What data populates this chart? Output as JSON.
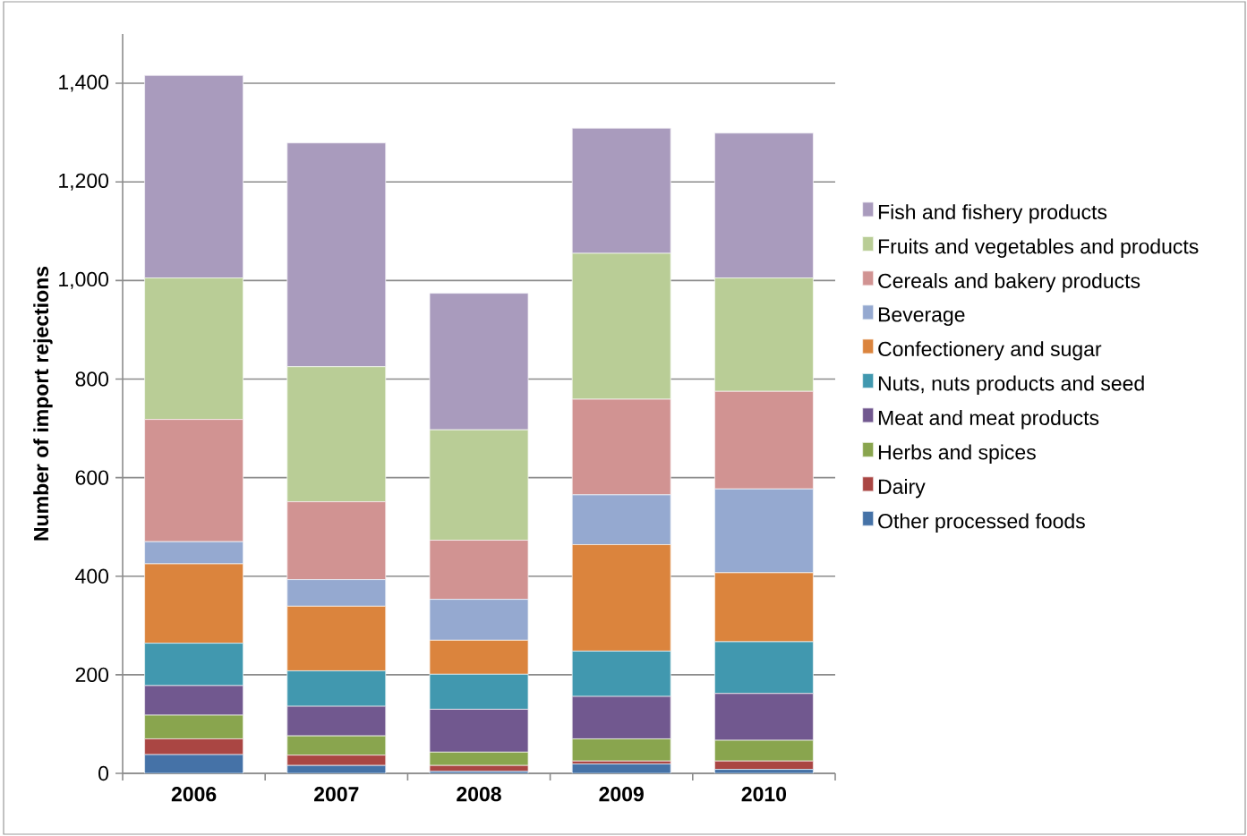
{
  "chart_data": {
    "type": "bar",
    "stacked": true,
    "ylabel": "Number of import rejections",
    "categories": [
      "2006",
      "2007",
      "2008",
      "2009",
      "2010"
    ],
    "ylim": [
      0,
      1500
    ],
    "yticks": [
      0,
      {
        "value": 200,
        "label": "200"
      },
      {
        "value": 400,
        "label": "400"
      },
      {
        "value": 600,
        "label": "600"
      },
      {
        "value": 800,
        "label": "800"
      },
      {
        "value": 1000,
        "label": "1,000"
      },
      {
        "value": 1200,
        "label": "1,200"
      },
      {
        "value": 1400,
        "label": "1,400"
      }
    ],
    "grid": "y",
    "legend": "right",
    "series": [
      {
        "name": "Other processed foods",
        "color": "#4572a7",
        "values": [
          38,
          16,
          4,
          19,
          8
        ]
      },
      {
        "name": "Dairy",
        "color": "#aa4643",
        "values": [
          32,
          21,
          12,
          6,
          17
        ]
      },
      {
        "name": "Herbs and spices",
        "color": "#89a54e",
        "values": [
          48,
          39,
          27,
          45,
          42
        ]
      },
      {
        "name": "Meat and meat products",
        "color": "#71588f",
        "values": [
          60,
          60,
          87,
          86,
          95
        ]
      },
      {
        "name": "Nuts, nuts products and seed",
        "color": "#4198af",
        "values": [
          86,
          72,
          71,
          92,
          105
        ]
      },
      {
        "name": "Confectionery and sugar",
        "color": "#db843d",
        "values": [
          161,
          131,
          69,
          216,
          140
        ]
      },
      {
        "name": "Beverage",
        "color": "#95a9d0",
        "values": [
          45,
          54,
          83,
          101,
          170
        ]
      },
      {
        "name": "Cereals and bakery products",
        "color": "#d19392",
        "values": [
          248,
          158,
          120,
          194,
          198
        ]
      },
      {
        "name": "Fruits and vegetables and products",
        "color": "#b9cd96",
        "values": [
          287,
          274,
          224,
          296,
          230
        ]
      },
      {
        "name": "Fish and fishery products",
        "color": "#a99bbd",
        "values": [
          411,
          454,
          277,
          254,
          294
        ]
      }
    ]
  }
}
